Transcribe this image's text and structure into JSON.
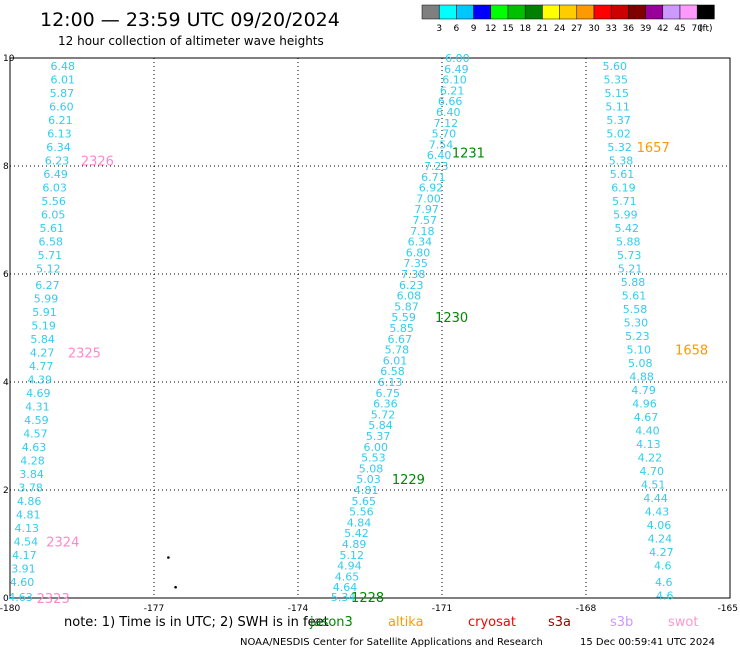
{
  "title": "12:00 — 23:59 UTC 09/20/2024",
  "subtitle": "12 hour collection of altimeter wave heights",
  "colors": {
    "value_text": "#33ccee",
    "pass_jason": "#008800",
    "pass_altika": "#ff9900",
    "pass_swot": "#ff88cc"
  },
  "legend": {
    "labels": [
      "3",
      "6",
      "9",
      "12",
      "15",
      "18",
      "21",
      "24",
      "27",
      "30",
      "33",
      "36",
      "39",
      "42",
      "45",
      "70"
    ],
    "unit": "(ft)",
    "colors": [
      "#7f7f7f",
      "#00ffff",
      "#00c8ff",
      "#0000ff",
      "#00ff00",
      "#00c000",
      "#008000",
      "#ffff00",
      "#ffcc00",
      "#ff9900",
      "#ff0000",
      "#cc0000",
      "#800000",
      "#990099",
      "#cc99ff",
      "#ff99ff",
      "#000000"
    ]
  },
  "note": {
    "prefix": "note:  1) Time is in UTC; 2) SWH is in feet",
    "satellites": [
      {
        "name": "jason3",
        "color": "#008800"
      },
      {
        "name": "altika",
        "color": "#ff9900"
      },
      {
        "name": "cryosat",
        "color": "#ff0000"
      },
      {
        "name": "s3a",
        "color": "#990000"
      },
      {
        "name": "s3b",
        "color": "#cc99ff"
      },
      {
        "name": "swot",
        "color": "#ff99cc"
      }
    ]
  },
  "footer": {
    "center": "NOAA/NESDIS Center for Satellite Applications and Research",
    "timestamp": "15 Dec 00:59:41 UTC 2024"
  },
  "chart_data": {
    "type": "scatter",
    "xlim": [
      -180,
      -165
    ],
    "ylim": [
      0,
      10
    ],
    "x_ticks": [
      "-180",
      "-177",
      "-174",
      "-171",
      "-168",
      "-165"
    ],
    "y_ticks": [
      "0",
      "2",
      "4",
      "6",
      "8",
      "10"
    ],
    "grid": true,
    "tracks": [
      {
        "name": "swot-left",
        "points": [
          [
            -178.9,
            9.85,
            "6.48"
          ],
          [
            -178.9,
            9.6,
            "6.01"
          ],
          [
            -178.92,
            9.35,
            "5.87"
          ],
          [
            -178.93,
            9.1,
            "6.60"
          ],
          [
            -178.95,
            8.85,
            "6.21"
          ],
          [
            -178.97,
            8.6,
            "6.13"
          ],
          [
            -178.99,
            8.35,
            "6.34"
          ],
          [
            -179.02,
            8.1,
            "6.23"
          ],
          [
            -179.05,
            7.85,
            "6.49"
          ],
          [
            -179.07,
            7.6,
            "6.03"
          ],
          [
            -179.09,
            7.35,
            "5.56"
          ],
          [
            -179.1,
            7.1,
            "6.05"
          ],
          [
            -179.13,
            6.85,
            "5.61"
          ],
          [
            -179.15,
            6.6,
            "6.58"
          ],
          [
            -179.17,
            6.35,
            "5.71"
          ],
          [
            -179.2,
            6.1,
            "5.12"
          ],
          [
            -179.22,
            5.8,
            "6.27"
          ],
          [
            -179.25,
            5.55,
            "5.99"
          ],
          [
            -179.28,
            5.3,
            "5.91"
          ],
          [
            -179.3,
            5.05,
            "5.19"
          ],
          [
            -179.32,
            4.8,
            "5.84"
          ],
          [
            -179.33,
            4.55,
            "4.27"
          ],
          [
            -179.35,
            4.3,
            "4.77"
          ],
          [
            -179.38,
            4.05,
            "4.39"
          ],
          [
            -179.41,
            3.8,
            "4.69"
          ],
          [
            -179.43,
            3.55,
            "4.31"
          ],
          [
            -179.45,
            3.3,
            "4.59"
          ],
          [
            -179.47,
            3.05,
            "4.57"
          ],
          [
            -179.5,
            2.8,
            "4.63"
          ],
          [
            -179.53,
            2.55,
            "4.28"
          ],
          [
            -179.55,
            2.3,
            "3.84"
          ],
          [
            -179.57,
            2.05,
            "3.78"
          ],
          [
            -179.6,
            1.8,
            "4.86"
          ],
          [
            -179.62,
            1.55,
            "4.81"
          ],
          [
            -179.65,
            1.3,
            "4.13"
          ],
          [
            -179.67,
            1.05,
            "4.54"
          ],
          [
            -179.7,
            0.8,
            "4.17"
          ],
          [
            -179.72,
            0.55,
            "3.91"
          ],
          [
            -179.75,
            0.3,
            "4.60"
          ],
          [
            -179.78,
            0.02,
            "4.63"
          ]
        ]
      },
      {
        "name": "jason-center",
        "points": [
          [
            -170.68,
            10.0,
            "6.00"
          ],
          [
            -170.7,
            9.8,
            "6.49"
          ],
          [
            -170.74,
            9.6,
            "6.10"
          ],
          [
            -170.79,
            9.4,
            "6.21"
          ],
          [
            -170.83,
            9.2,
            "6.66"
          ],
          [
            -170.87,
            9.0,
            "6.40"
          ],
          [
            -170.92,
            8.8,
            "7.12"
          ],
          [
            -170.96,
            8.6,
            "5.70"
          ],
          [
            -171.02,
            8.4,
            "7.54"
          ],
          [
            -171.06,
            8.2,
            "6.40"
          ],
          [
            -171.12,
            8.0,
            "7.23"
          ],
          [
            -171.18,
            7.8,
            "6.71"
          ],
          [
            -171.23,
            7.6,
            "6.92"
          ],
          [
            -171.28,
            7.4,
            "7.00"
          ],
          [
            -171.32,
            7.2,
            "7.97"
          ],
          [
            -171.36,
            7.0,
            "7.57"
          ],
          [
            -171.41,
            6.8,
            "7.18"
          ],
          [
            -171.46,
            6.6,
            "6.34"
          ],
          [
            -171.5,
            6.4,
            "6.80"
          ],
          [
            -171.55,
            6.2,
            "7.35"
          ],
          [
            -171.6,
            6.0,
            "7.38"
          ],
          [
            -171.64,
            5.8,
            "6.23"
          ],
          [
            -171.69,
            5.6,
            "6.08"
          ],
          [
            -171.74,
            5.4,
            "5.87"
          ],
          [
            -171.8,
            5.2,
            "5.59"
          ],
          [
            -171.84,
            5.0,
            "5.85"
          ],
          [
            -171.88,
            4.8,
            "6.67"
          ],
          [
            -171.94,
            4.6,
            "5.78"
          ],
          [
            -171.98,
            4.4,
            "6.01"
          ],
          [
            -172.03,
            4.2,
            "6.58"
          ],
          [
            -172.08,
            4.0,
            "6.13"
          ],
          [
            -172.13,
            3.8,
            "6.75"
          ],
          [
            -172.18,
            3.6,
            "6.36"
          ],
          [
            -172.23,
            3.4,
            "5.72"
          ],
          [
            -172.28,
            3.2,
            "5.84"
          ],
          [
            -172.33,
            3.0,
            "5.37"
          ],
          [
            -172.38,
            2.8,
            "6.00"
          ],
          [
            -172.43,
            2.6,
            "5.53"
          ],
          [
            -172.48,
            2.4,
            "5.08"
          ],
          [
            -172.53,
            2.2,
            "5.03"
          ],
          [
            -172.58,
            2.0,
            "4.81"
          ],
          [
            -172.63,
            1.8,
            "5.65"
          ],
          [
            -172.68,
            1.6,
            "5.56"
          ],
          [
            -172.73,
            1.4,
            "4.84"
          ],
          [
            -172.78,
            1.2,
            "5.42"
          ],
          [
            -172.83,
            1.0,
            "4.89"
          ],
          [
            -172.88,
            0.8,
            "5.12"
          ],
          [
            -172.93,
            0.6,
            "4.94"
          ],
          [
            -172.98,
            0.4,
            "4.65"
          ],
          [
            -173.02,
            0.2,
            "4.64"
          ],
          [
            -173.06,
            0.02,
            "5.34"
          ]
        ]
      },
      {
        "name": "altika-right",
        "points": [
          [
            -167.4,
            9.85,
            "5.60"
          ],
          [
            -167.38,
            9.6,
            "5.35"
          ],
          [
            -167.36,
            9.35,
            "5.15"
          ],
          [
            -167.34,
            9.1,
            "5.11"
          ],
          [
            -167.32,
            8.85,
            "5.37"
          ],
          [
            -167.32,
            8.6,
            "5.02"
          ],
          [
            -167.3,
            8.35,
            "5.32"
          ],
          [
            -167.27,
            8.1,
            "5.38"
          ],
          [
            -167.25,
            7.85,
            "5.61"
          ],
          [
            -167.22,
            7.6,
            "6.19"
          ],
          [
            -167.2,
            7.35,
            "5.71"
          ],
          [
            -167.18,
            7.1,
            "5.99"
          ],
          [
            -167.15,
            6.85,
            "5.42"
          ],
          [
            -167.12,
            6.6,
            "5.88"
          ],
          [
            -167.1,
            6.35,
            "5.73"
          ],
          [
            -167.08,
            6.1,
            "5.21"
          ],
          [
            -167.02,
            5.85,
            "5.88"
          ],
          [
            -167.0,
            5.6,
            "5.61"
          ],
          [
            -166.98,
            5.35,
            "5.58"
          ],
          [
            -166.96,
            5.1,
            "5.30"
          ],
          [
            -166.93,
            4.85,
            "5.23"
          ],
          [
            -166.9,
            4.6,
            "5.10"
          ],
          [
            -166.87,
            4.35,
            "5.08"
          ],
          [
            -166.84,
            4.1,
            "4.88"
          ],
          [
            -166.8,
            3.85,
            "4.79"
          ],
          [
            -166.78,
            3.6,
            "4.96"
          ],
          [
            -166.75,
            3.35,
            "4.67"
          ],
          [
            -166.72,
            3.1,
            "4.40"
          ],
          [
            -166.7,
            2.85,
            "4.13"
          ],
          [
            -166.67,
            2.6,
            "4.22"
          ],
          [
            -166.63,
            2.35,
            "4.70"
          ],
          [
            -166.6,
            2.1,
            "4.51"
          ],
          [
            -166.55,
            1.85,
            "4.44"
          ],
          [
            -166.52,
            1.6,
            "4.43"
          ],
          [
            -166.48,
            1.35,
            "4.06"
          ],
          [
            -166.46,
            1.1,
            "4.24"
          ],
          [
            -166.43,
            0.85,
            "4.27"
          ],
          [
            -166.4,
            0.6,
            "4.6"
          ],
          [
            -166.38,
            0.3,
            "4.6"
          ],
          [
            -166.36,
            0.05,
            "4.6"
          ]
        ]
      }
    ],
    "pass_labels": [
      {
        "text": "2326",
        "x": -178.18,
        "y": 8.1,
        "color": "#ff88cc"
      },
      {
        "text": "2325",
        "x": -178.45,
        "y": 4.55,
        "color": "#ff88cc"
      },
      {
        "text": "2324",
        "x": -178.9,
        "y": 1.05,
        "color": "#ff88cc"
      },
      {
        "text": "2323",
        "x": -179.1,
        "y": 0.0,
        "color": "#ff88cc"
      },
      {
        "text": "1231",
        "x": -170.45,
        "y": 8.25,
        "color": "#008800"
      },
      {
        "text": "1230",
        "x": -170.8,
        "y": 5.2,
        "color": "#008800"
      },
      {
        "text": "1229",
        "x": -171.7,
        "y": 2.2,
        "color": "#008800"
      },
      {
        "text": "1228",
        "x": -172.55,
        "y": 0.02,
        "color": "#008800"
      },
      {
        "text": "1657",
        "x": -166.6,
        "y": 8.35,
        "color": "#ff9900"
      },
      {
        "text": "1658",
        "x": -165.8,
        "y": 4.6,
        "color": "#ff9900"
      }
    ],
    "dots": [
      {
        "x": -176.7,
        "y": 0.75
      },
      {
        "x": -176.55,
        "y": 0.2
      }
    ]
  }
}
